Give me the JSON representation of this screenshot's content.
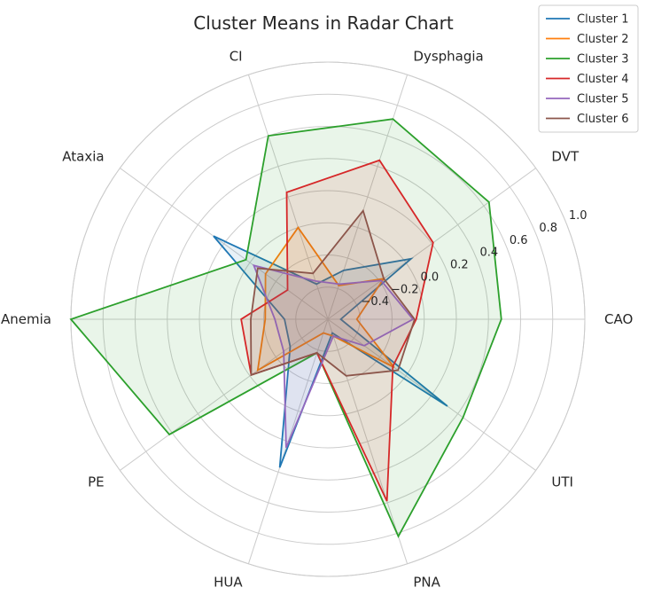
{
  "chart_data": {
    "type": "radar",
    "title": "Cluster Means in Radar Chart",
    "categories": [
      "CAO",
      "DVT",
      "Dysphagia",
      "CI",
      "Ataxia",
      "Anemia",
      "PE",
      "HUA",
      "PNA",
      "UTI"
    ],
    "rlim": [
      -0.6,
      1.0
    ],
    "rticks": [
      -0.4,
      -0.2,
      0.0,
      0.2,
      0.4,
      0.6,
      0.8,
      1.0
    ],
    "rtick_labels": [
      "−0.4",
      "−0.2",
      "0.0",
      "0.2",
      "0.4",
      "0.6",
      "0.8",
      "1.0"
    ],
    "grid": true,
    "legend_position": "top-right",
    "series": [
      {
        "name": "Cluster 1",
        "color": "#1f77b4",
        "values": [
          -0.52,
          0.04,
          -0.28,
          -0.37,
          0.28,
          -0.33,
          -0.31,
          0.37,
          -0.51,
          0.32
        ]
      },
      {
        "name": "Cluster 2",
        "color": "#ff7f0e",
        "values": [
          -0.42,
          -0.17,
          -0.38,
          0.0,
          -0.12,
          -0.21,
          -0.06,
          -0.51,
          -0.49,
          -0.09
        ]
      },
      {
        "name": "Cluster 3",
        "color": "#2ca02c",
        "values": [
          0.48,
          0.64,
          0.71,
          0.6,
          0.03,
          1.0,
          0.62,
          -0.38,
          0.82,
          0.44
        ]
      },
      {
        "name": "Cluster 4",
        "color": "#d62728",
        "values": [
          -0.05,
          0.21,
          0.44,
          0.23,
          -0.29,
          -0.06,
          -0.01,
          -0.38,
          0.59,
          -0.1
        ]
      },
      {
        "name": "Cluster 5",
        "color": "#9467bd",
        "values": [
          -0.07,
          -0.19,
          -0.37,
          -0.35,
          -0.03,
          -0.27,
          -0.26,
          0.24,
          -0.49,
          -0.32
        ]
      },
      {
        "name": "Cluster 6",
        "color": "#8c564b",
        "values": [
          -0.06,
          -0.17,
          0.11,
          -0.3,
          -0.06,
          -0.12,
          -0.01,
          -0.38,
          -0.23,
          -0.06
        ]
      }
    ]
  }
}
